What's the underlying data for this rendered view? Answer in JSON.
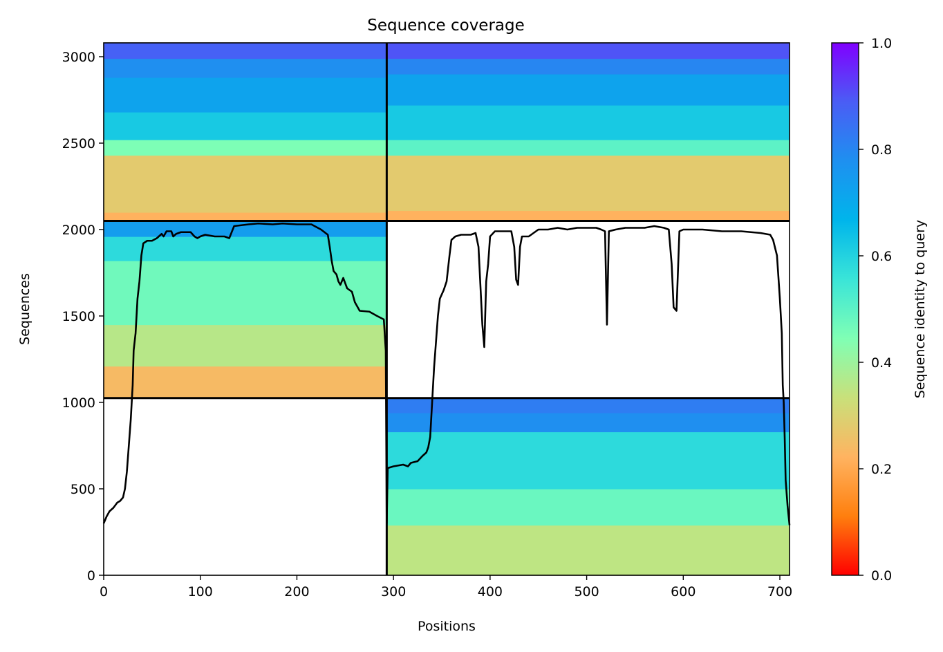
{
  "chart_data": {
    "type": "heatmap",
    "title": "Sequence coverage",
    "xlabel": "Positions",
    "ylabel": "Sequences",
    "xlim": [
      0,
      710
    ],
    "ylim": [
      0,
      3080
    ],
    "xticks": [
      0,
      100,
      200,
      300,
      400,
      500,
      600,
      700
    ],
    "yticks": [
      0,
      500,
      1000,
      1500,
      2000,
      2500,
      3000
    ],
    "grid": false,
    "colorbar": {
      "label": "Sequence identity to query",
      "range": [
        0.0,
        1.0
      ],
      "ticks": [
        0.0,
        0.2,
        0.4,
        0.6,
        0.8,
        1.0
      ],
      "colormap": "rainbow_r",
      "stops": [
        "#ff0000",
        "#ff7f0e",
        "#ffb360",
        "#c9e07a",
        "#80ffb4",
        "#3ae5d8",
        "#00b5eb",
        "#1e90f0",
        "#4a5df5",
        "#8000ff"
      ]
    },
    "block_separators": {
      "x": [
        293
      ],
      "y": [
        1025,
        2050
      ]
    },
    "blocks": [
      {
        "name": "block-upper-left",
        "x_range": [
          0,
          293
        ],
        "y_range": [
          2050,
          3080
        ],
        "bands": [
          {
            "y0": 2050,
            "y1": 2100,
            "identity": 0.22
          },
          {
            "y0": 2100,
            "y1": 2430,
            "identity": 0.28
          },
          {
            "y0": 2430,
            "y1": 2520,
            "identity": 0.45
          },
          {
            "y0": 2520,
            "y1": 2680,
            "identity": 0.62
          },
          {
            "y0": 2680,
            "y1": 2880,
            "identity": 0.72
          },
          {
            "y0": 2880,
            "y1": 2990,
            "identity": 0.78
          },
          {
            "y0": 2990,
            "y1": 3080,
            "identity": 0.88
          }
        ]
      },
      {
        "name": "block-upper-right",
        "x_range": [
          293,
          710
        ],
        "y_range": [
          2050,
          3080
        ],
        "bands": [
          {
            "y0": 2050,
            "y1": 2110,
            "identity": 0.22
          },
          {
            "y0": 2110,
            "y1": 2430,
            "identity": 0.28
          },
          {
            "y0": 2430,
            "y1": 2520,
            "identity": 0.5
          },
          {
            "y0": 2520,
            "y1": 2720,
            "identity": 0.62
          },
          {
            "y0": 2720,
            "y1": 2900,
            "identity": 0.72
          },
          {
            "y0": 2900,
            "y1": 2990,
            "identity": 0.8
          },
          {
            "y0": 2990,
            "y1": 3080,
            "identity": 0.9
          }
        ]
      },
      {
        "name": "block-middle-left",
        "x_range": [
          0,
          293
        ],
        "y_range": [
          1025,
          2050
        ],
        "bands": [
          {
            "y0": 1025,
            "y1": 1210,
            "identity": 0.24
          },
          {
            "y0": 1210,
            "y1": 1450,
            "identity": 0.36
          },
          {
            "y0": 1450,
            "y1": 1820,
            "identity": 0.47
          },
          {
            "y0": 1820,
            "y1": 1960,
            "identity": 0.58
          },
          {
            "y0": 1960,
            "y1": 2050,
            "identity": 0.74
          }
        ]
      },
      {
        "name": "block-lower-right",
        "x_range": [
          293,
          710
        ],
        "y_range": [
          0,
          1025
        ],
        "bands": [
          {
            "y0": 0,
            "y1": 290,
            "identity": 0.35
          },
          {
            "y0": 290,
            "y1": 500,
            "identity": 0.48
          },
          {
            "y0": 500,
            "y1": 830,
            "identity": 0.58
          },
          {
            "y0": 830,
            "y1": 940,
            "identity": 0.78
          },
          {
            "y0": 940,
            "y1": 1025,
            "identity": 0.82
          }
        ]
      }
    ],
    "coverage_line": {
      "name": "coverage",
      "color": "#000000",
      "points": [
        [
          0,
          300
        ],
        [
          3,
          340
        ],
        [
          6,
          370
        ],
        [
          10,
          390
        ],
        [
          14,
          420
        ],
        [
          17,
          430
        ],
        [
          20,
          450
        ],
        [
          22,
          500
        ],
        [
          24,
          600
        ],
        [
          26,
          750
        ],
        [
          28,
          900
        ],
        [
          30,
          1100
        ],
        [
          31,
          1300
        ],
        [
          33,
          1400
        ],
        [
          35,
          1600
        ],
        [
          37,
          1700
        ],
        [
          39,
          1850
        ],
        [
          41,
          1920
        ],
        [
          45,
          1935
        ],
        [
          50,
          1935
        ],
        [
          55,
          1950
        ],
        [
          60,
          1975
        ],
        [
          62,
          1960
        ],
        [
          65,
          1990
        ],
        [
          70,
          1990
        ],
        [
          72,
          1960
        ],
        [
          75,
          1975
        ],
        [
          80,
          1985
        ],
        [
          90,
          1985
        ],
        [
          94,
          1960
        ],
        [
          97,
          1950
        ],
        [
          100,
          1960
        ],
        [
          105,
          1970
        ],
        [
          115,
          1960
        ],
        [
          125,
          1960
        ],
        [
          130,
          1950
        ],
        [
          135,
          2020
        ],
        [
          150,
          2030
        ],
        [
          160,
          2035
        ],
        [
          175,
          2030
        ],
        [
          185,
          2035
        ],
        [
          200,
          2030
        ],
        [
          215,
          2030
        ],
        [
          225,
          2000
        ],
        [
          232,
          1970
        ],
        [
          234,
          1900
        ],
        [
          236,
          1820
        ],
        [
          238,
          1760
        ],
        [
          241,
          1740
        ],
        [
          243,
          1700
        ],
        [
          245,
          1680
        ],
        [
          248,
          1720
        ],
        [
          252,
          1660
        ],
        [
          257,
          1640
        ],
        [
          260,
          1580
        ],
        [
          265,
          1530
        ],
        [
          275,
          1525
        ],
        [
          283,
          1500
        ],
        [
          290,
          1480
        ],
        [
          292,
          1300
        ],
        [
          293,
          300
        ],
        [
          294,
          620
        ],
        [
          300,
          630
        ],
        [
          310,
          640
        ],
        [
          315,
          630
        ],
        [
          318,
          650
        ],
        [
          325,
          660
        ],
        [
          330,
          690
        ],
        [
          334,
          710
        ],
        [
          336,
          740
        ],
        [
          338,
          800
        ],
        [
          340,
          1000
        ],
        [
          342,
          1200
        ],
        [
          344,
          1350
        ],
        [
          346,
          1500
        ],
        [
          348,
          1600
        ],
        [
          352,
          1650
        ],
        [
          355,
          1700
        ],
        [
          358,
          1850
        ],
        [
          360,
          1940
        ],
        [
          364,
          1960
        ],
        [
          370,
          1970
        ],
        [
          380,
          1970
        ],
        [
          385,
          1980
        ],
        [
          388,
          1900
        ],
        [
          392,
          1450
        ],
        [
          394,
          1320
        ],
        [
          396,
          1700
        ],
        [
          398,
          1800
        ],
        [
          400,
          1960
        ],
        [
          405,
          1990
        ],
        [
          410,
          1990
        ],
        [
          415,
          1990
        ],
        [
          422,
          1990
        ],
        [
          425,
          1900
        ],
        [
          427,
          1710
        ],
        [
          429,
          1680
        ],
        [
          431,
          1900
        ],
        [
          433,
          1960
        ],
        [
          440,
          1960
        ],
        [
          445,
          1980
        ],
        [
          450,
          2000
        ],
        [
          460,
          2000
        ],
        [
          470,
          2010
        ],
        [
          480,
          2000
        ],
        [
          490,
          2010
        ],
        [
          500,
          2010
        ],
        [
          510,
          2010
        ],
        [
          515,
          2000
        ],
        [
          519,
          1990
        ],
        [
          521,
          1450
        ],
        [
          523,
          1990
        ],
        [
          530,
          2000
        ],
        [
          540,
          2010
        ],
        [
          550,
          2010
        ],
        [
          560,
          2010
        ],
        [
          570,
          2020
        ],
        [
          580,
          2010
        ],
        [
          585,
          2000
        ],
        [
          588,
          1800
        ],
        [
          590,
          1550
        ],
        [
          593,
          1530
        ],
        [
          596,
          1990
        ],
        [
          600,
          2000
        ],
        [
          620,
          2000
        ],
        [
          640,
          1990
        ],
        [
          660,
          1990
        ],
        [
          680,
          1980
        ],
        [
          690,
          1970
        ],
        [
          693,
          1940
        ],
        [
          697,
          1850
        ],
        [
          700,
          1600
        ],
        [
          702,
          1400
        ],
        [
          703,
          1100
        ],
        [
          704,
          1000
        ],
        [
          705,
          800
        ],
        [
          706,
          550
        ],
        [
          708,
          400
        ],
        [
          710,
          290
        ]
      ]
    }
  }
}
